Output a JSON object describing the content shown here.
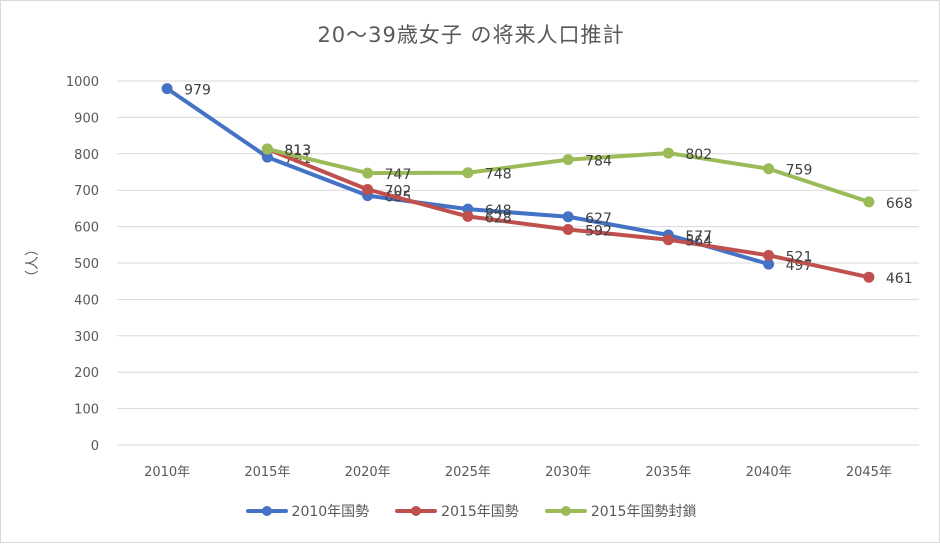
{
  "chart_data": {
    "type": "line",
    "title": "20～39歳女子 の将来人口推計",
    "ylabel": "（人）",
    "xlabel": "",
    "categories": [
      "2010年",
      "2015年",
      "2020年",
      "2025年",
      "2030年",
      "2035年",
      "2040年",
      "2045年"
    ],
    "ylim": [
      0,
      1000
    ],
    "yticks": [
      0,
      100,
      200,
      300,
      400,
      500,
      600,
      700,
      800,
      900,
      1000
    ],
    "grid": true,
    "legend_position": "bottom",
    "series": [
      {
        "name": "2010年国勢",
        "color": "#4472c4",
        "values": [
          979,
          791,
          685,
          648,
          627,
          577,
          497,
          null
        ]
      },
      {
        "name": "2015年国勢",
        "color": "#c0504d",
        "values": [
          null,
          813,
          702,
          628,
          592,
          564,
          521,
          461
        ]
      },
      {
        "name": "2015年国勢封鎖",
        "color": "#9bbb59",
        "values": [
          null,
          813,
          747,
          748,
          784,
          802,
          759,
          668
        ]
      }
    ]
  }
}
